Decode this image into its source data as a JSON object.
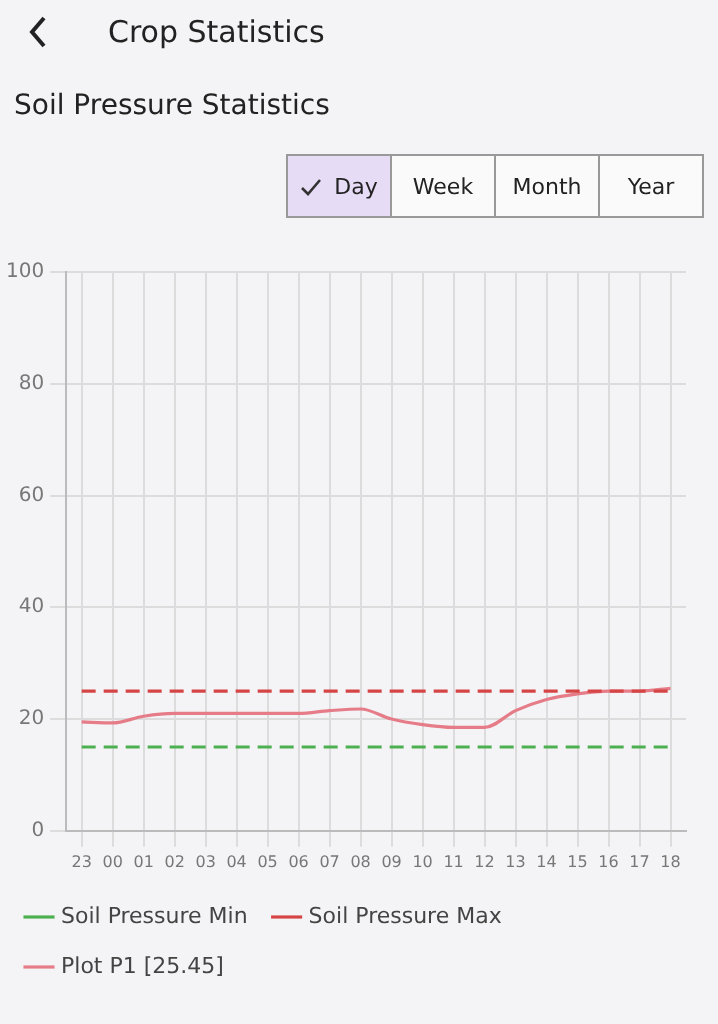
{
  "chart_data": {
    "type": "line",
    "title": "Crop Statistics",
    "subtitle": "Soil Pressure Statistics",
    "annotations": [
      "Day",
      "Week",
      "Month",
      "Year"
    ],
    "categories": [
      "23",
      "00",
      "01",
      "02",
      "03",
      "04",
      "05",
      "06",
      "07",
      "08",
      "09",
      "10",
      "11",
      "12",
      "13",
      "14",
      "15",
      "16",
      "17",
      "18"
    ],
    "series": [
      {
        "name": "Soil Pressure Min",
        "color": "#4caf50",
        "line_style": "dashed",
        "values": [
          15,
          15,
          15,
          15,
          15,
          15,
          15,
          15,
          15,
          15,
          15,
          15,
          15,
          15,
          15,
          15,
          15,
          15,
          15,
          15
        ]
      },
      {
        "name": "Soil Pressure Max",
        "color": "#d64545",
        "line_style": "dashed",
        "values": [
          25,
          25,
          25,
          25,
          25,
          25,
          25,
          25,
          25,
          25,
          25,
          25,
          25,
          25,
          25,
          25,
          25,
          25,
          25,
          25
        ]
      },
      {
        "name": "Plot P1 [25.45]",
        "color": "#e57c88",
        "line_style": "solid",
        "values": [
          19.5,
          19.3,
          20.5,
          21,
          21,
          21,
          21,
          21,
          21.5,
          21.8,
          20,
          19,
          18.5,
          18.5,
          21.5,
          23.5,
          24.5,
          25,
          25,
          25.5
        ]
      }
    ],
    "ylim": [
      0,
      100
    ],
    "yticks": [
      0,
      20,
      40,
      60,
      80,
      100
    ],
    "grid": true,
    "legend": "bottom",
    "marker": "none"
  }
}
